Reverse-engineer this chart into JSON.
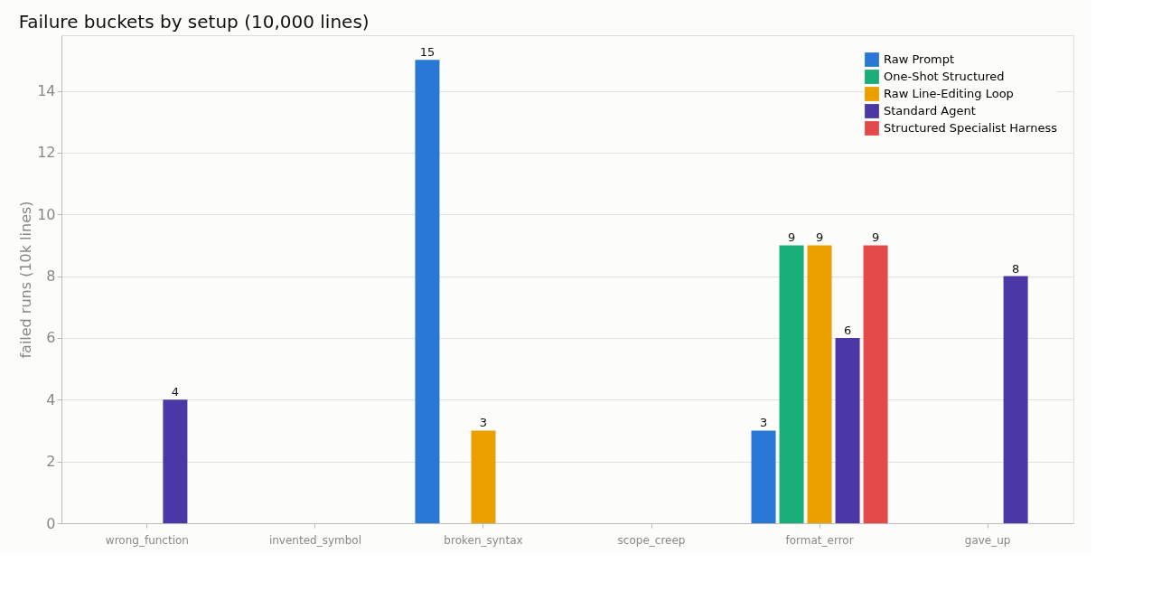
{
  "chart_data": {
    "type": "bar",
    "title": "Failure buckets by setup (10,000 lines)",
    "ylabel": "failed runs (10k lines)",
    "categories": [
      "wrong_function",
      "invented_symbol",
      "broken_syntax",
      "scope_creep",
      "format_error",
      "gave_up"
    ],
    "series": [
      {
        "name": "Raw Prompt",
        "color": "#2a78d6",
        "values": [
          null,
          null,
          15,
          null,
          3,
          null
        ]
      },
      {
        "name": "One-Shot Structured",
        "color": "#1aaf78",
        "values": [
          null,
          null,
          null,
          null,
          9,
          null
        ]
      },
      {
        "name": "Raw Line-Editing Loop",
        "color": "#eba000",
        "values": [
          null,
          null,
          3,
          null,
          9,
          null
        ]
      },
      {
        "name": "Standard Agent",
        "color": "#4b38a6",
        "values": [
          4,
          null,
          null,
          null,
          6,
          8
        ]
      },
      {
        "name": "Structured Specialist Harness",
        "color": "#e54a4a",
        "values": [
          null,
          null,
          null,
          null,
          9,
          null
        ]
      }
    ],
    "ylim": [
      0,
      15.8
    ],
    "yticks": [
      0,
      2,
      4,
      6,
      8,
      10,
      12,
      14
    ],
    "grid": "y",
    "legend": "top right",
    "data_labels": true
  }
}
